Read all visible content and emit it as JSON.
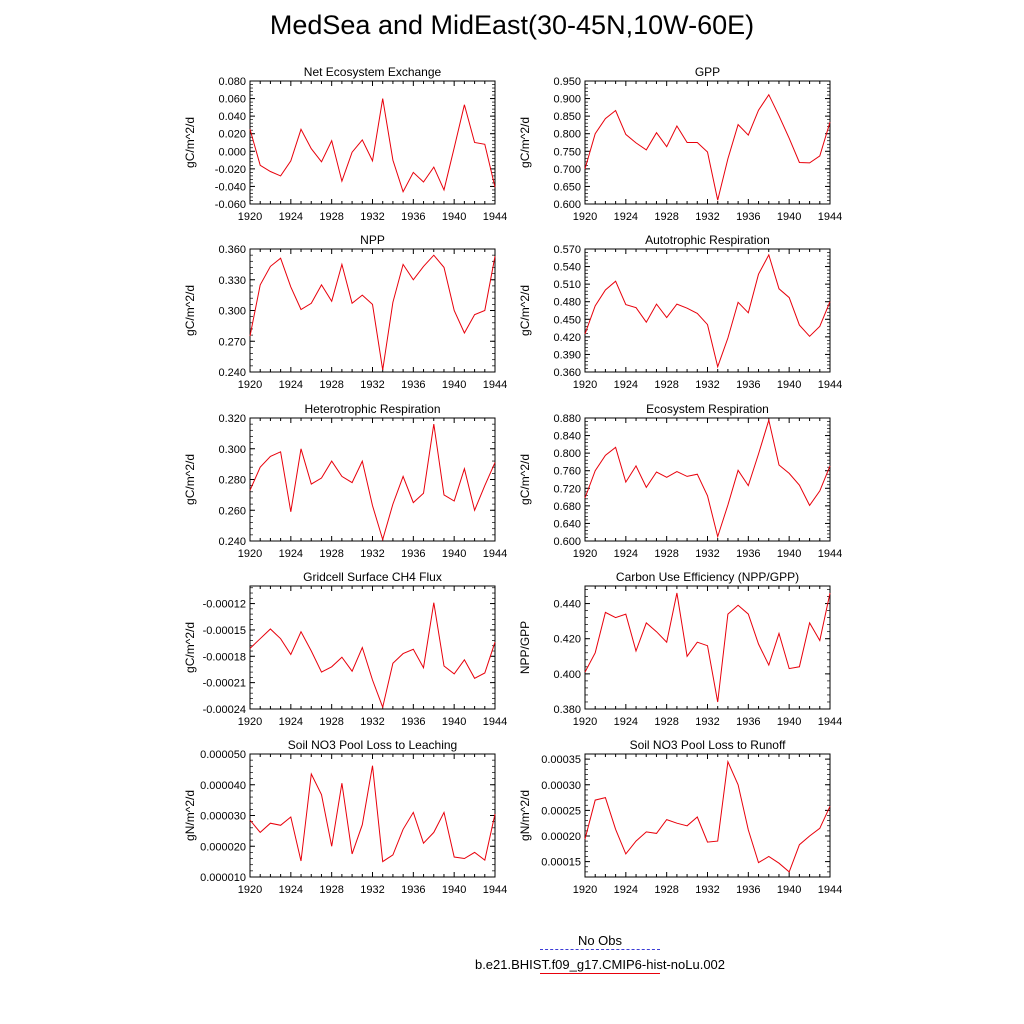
{
  "figure": {
    "title": "MedSea and MidEast(30-45N,10W-60E)",
    "legend": [
      {
        "label": "No Obs",
        "style": "dashed",
        "color": "#3b3bd6"
      },
      {
        "label": "b.e21.BHIST.f09_g17.CMIP6-hist-noLu.002",
        "style": "solid",
        "color": "#e8000b"
      }
    ],
    "line_color": "#e8000b"
  },
  "chart_data": [
    {
      "type": "line",
      "title": "Net Ecosystem Exchange",
      "ylabel": "gC/m^2/d",
      "xlabel": "",
      "x": [
        1920,
        1921,
        1922,
        1923,
        1924,
        1925,
        1926,
        1927,
        1928,
        1929,
        1930,
        1931,
        1932,
        1933,
        1934,
        1935,
        1936,
        1937,
        1938,
        1939,
        1940,
        1941,
        1942,
        1943,
        1944
      ],
      "xticks": [
        "1920",
        "1924",
        "1928",
        "1932",
        "1936",
        "1940",
        "1944"
      ],
      "ylim": [
        -0.06,
        0.08
      ],
      "yticks": [
        "-0.060",
        "-0.040",
        "-0.020",
        "0.000",
        "0.020",
        "0.040",
        "0.060",
        "0.080"
      ],
      "values": [
        0.025,
        -0.016,
        -0.023,
        -0.028,
        -0.011,
        0.025,
        0.003,
        -0.012,
        0.012,
        -0.034,
        -0.001,
        0.013,
        -0.011,
        0.06,
        -0.01,
        -0.046,
        -0.024,
        -0.035,
        -0.018,
        -0.044,
        0.004,
        0.053,
        0.01,
        0.008,
        -0.041
      ]
    },
    {
      "type": "line",
      "title": "GPP",
      "ylabel": "gC/m^2/d",
      "xlabel": "",
      "x": [
        1920,
        1921,
        1922,
        1923,
        1924,
        1925,
        1926,
        1927,
        1928,
        1929,
        1930,
        1931,
        1932,
        1933,
        1934,
        1935,
        1936,
        1937,
        1938,
        1939,
        1940,
        1941,
        1942,
        1943,
        1944
      ],
      "xticks": [
        "1920",
        "1924",
        "1928",
        "1932",
        "1936",
        "1940",
        "1944"
      ],
      "ylim": [
        0.6,
        0.95
      ],
      "yticks": [
        "0.600",
        "0.650",
        "0.700",
        "0.750",
        "0.800",
        "0.850",
        "0.900",
        "0.950"
      ],
      "values": [
        0.7,
        0.8,
        0.843,
        0.866,
        0.798,
        0.774,
        0.754,
        0.803,
        0.763,
        0.822,
        0.775,
        0.775,
        0.748,
        0.611,
        0.729,
        0.826,
        0.796,
        0.867,
        0.911,
        0.851,
        0.787,
        0.718,
        0.717,
        0.737,
        0.833
      ]
    },
    {
      "type": "line",
      "title": "NPP",
      "ylabel": "gC/m^2/d",
      "xlabel": "",
      "x": [
        1920,
        1921,
        1922,
        1923,
        1924,
        1925,
        1926,
        1927,
        1928,
        1929,
        1930,
        1931,
        1932,
        1933,
        1934,
        1935,
        1936,
        1937,
        1938,
        1939,
        1940,
        1941,
        1942,
        1943,
        1944
      ],
      "xticks": [
        "1920",
        "1924",
        "1928",
        "1932",
        "1936",
        "1940",
        "1944"
      ],
      "ylim": [
        0.24,
        0.36
      ],
      "yticks": [
        "0.240",
        "0.270",
        "0.300",
        "0.330",
        "0.360"
      ],
      "values": [
        0.275,
        0.325,
        0.343,
        0.351,
        0.323,
        0.301,
        0.307,
        0.325,
        0.309,
        0.345,
        0.307,
        0.315,
        0.306,
        0.242,
        0.308,
        0.345,
        0.33,
        0.343,
        0.354,
        0.342,
        0.3,
        0.278,
        0.296,
        0.3,
        0.353
      ]
    },
    {
      "type": "line",
      "title": "Autotrophic Respiration",
      "ylabel": "gC/m^2/d",
      "xlabel": "",
      "x": [
        1920,
        1921,
        1922,
        1923,
        1924,
        1925,
        1926,
        1927,
        1928,
        1929,
        1930,
        1931,
        1932,
        1933,
        1934,
        1935,
        1936,
        1937,
        1938,
        1939,
        1940,
        1941,
        1942,
        1943,
        1944
      ],
      "xticks": [
        "1920",
        "1924",
        "1928",
        "1932",
        "1936",
        "1940",
        "1944"
      ],
      "ylim": [
        0.36,
        0.57
      ],
      "yticks": [
        "0.360",
        "0.390",
        "0.420",
        "0.450",
        "0.480",
        "0.510",
        "0.540",
        "0.570"
      ],
      "values": [
        0.425,
        0.473,
        0.5,
        0.515,
        0.475,
        0.47,
        0.445,
        0.476,
        0.453,
        0.476,
        0.469,
        0.46,
        0.441,
        0.369,
        0.418,
        0.479,
        0.461,
        0.527,
        0.56,
        0.502,
        0.487,
        0.44,
        0.421,
        0.438,
        0.48
      ]
    },
    {
      "type": "line",
      "title": "Heterotrophic Respiration",
      "ylabel": "gC/m^2/d",
      "xlabel": "",
      "x": [
        1920,
        1921,
        1922,
        1923,
        1924,
        1925,
        1926,
        1927,
        1928,
        1929,
        1930,
        1931,
        1932,
        1933,
        1934,
        1935,
        1936,
        1937,
        1938,
        1939,
        1940,
        1941,
        1942,
        1943,
        1944
      ],
      "xticks": [
        "1920",
        "1924",
        "1928",
        "1932",
        "1936",
        "1940",
        "1944"
      ],
      "ylim": [
        0.24,
        0.32
      ],
      "yticks": [
        "0.240",
        "0.260",
        "0.280",
        "0.300",
        "0.320"
      ],
      "values": [
        0.273,
        0.288,
        0.295,
        0.298,
        0.259,
        0.3,
        0.277,
        0.281,
        0.292,
        0.282,
        0.278,
        0.292,
        0.263,
        0.241,
        0.264,
        0.282,
        0.265,
        0.271,
        0.316,
        0.27,
        0.266,
        0.287,
        0.26,
        0.276,
        0.291
      ]
    },
    {
      "type": "line",
      "title": "Ecosystem Respiration",
      "ylabel": "gC/m^2/d",
      "xlabel": "",
      "x": [
        1920,
        1921,
        1922,
        1923,
        1924,
        1925,
        1926,
        1927,
        1928,
        1929,
        1930,
        1931,
        1932,
        1933,
        1934,
        1935,
        1936,
        1937,
        1938,
        1939,
        1940,
        1941,
        1942,
        1943,
        1944
      ],
      "xticks": [
        "1920",
        "1924",
        "1928",
        "1932",
        "1936",
        "1940",
        "1944"
      ],
      "ylim": [
        0.6,
        0.88
      ],
      "yticks": [
        "0.600",
        "0.640",
        "0.680",
        "0.720",
        "0.760",
        "0.800",
        "0.840",
        "0.880"
      ],
      "values": [
        0.698,
        0.76,
        0.795,
        0.813,
        0.734,
        0.771,
        0.722,
        0.757,
        0.745,
        0.758,
        0.747,
        0.752,
        0.703,
        0.61,
        0.682,
        0.761,
        0.726,
        0.798,
        0.875,
        0.773,
        0.754,
        0.727,
        0.681,
        0.714,
        0.771
      ]
    },
    {
      "type": "line",
      "title": "Gridcell Surface CH4 Flux",
      "ylabel": "gC/m^2/d",
      "xlabel": "",
      "x": [
        1920,
        1921,
        1922,
        1923,
        1924,
        1925,
        1926,
        1927,
        1928,
        1929,
        1930,
        1931,
        1932,
        1933,
        1934,
        1935,
        1936,
        1937,
        1938,
        1939,
        1940,
        1941,
        1942,
        1943,
        1944
      ],
      "xticks": [
        "1920",
        "1924",
        "1928",
        "1932",
        "1936",
        "1940",
        "1944"
      ],
      "ylim": [
        -0.00024,
        -0.0001
      ],
      "yticks": [
        "-0.00024",
        "-0.00021",
        "-0.00018",
        "-0.00015",
        "-0.00012"
      ],
      "values": [
        -0.000171,
        -0.00016,
        -0.000149,
        -0.00016,
        -0.000178,
        -0.000152,
        -0.000174,
        -0.000198,
        -0.000192,
        -0.000181,
        -0.000197,
        -0.00017,
        -0.000207,
        -0.000238,
        -0.000188,
        -0.000177,
        -0.000172,
        -0.000193,
        -0.000119,
        -0.000191,
        -0.0002,
        -0.000184,
        -0.000205,
        -0.000199,
        -0.000164
      ]
    },
    {
      "type": "line",
      "title": "Carbon Use Efficiency (NPP/GPP)",
      "ylabel": "NPP/GPP",
      "xlabel": "",
      "x": [
        1920,
        1921,
        1922,
        1923,
        1924,
        1925,
        1926,
        1927,
        1928,
        1929,
        1930,
        1931,
        1932,
        1933,
        1934,
        1935,
        1936,
        1937,
        1938,
        1939,
        1940,
        1941,
        1942,
        1943,
        1944
      ],
      "xticks": [
        "1920",
        "1924",
        "1928",
        "1932",
        "1936",
        "1940",
        "1944"
      ],
      "ylim": [
        0.38,
        0.45
      ],
      "yticks": [
        "0.380",
        "0.400",
        "0.420",
        "0.440"
      ],
      "values": [
        0.401,
        0.412,
        0.435,
        0.432,
        0.434,
        0.413,
        0.429,
        0.424,
        0.418,
        0.446,
        0.41,
        0.418,
        0.416,
        0.384,
        0.434,
        0.439,
        0.434,
        0.417,
        0.405,
        0.423,
        0.403,
        0.404,
        0.429,
        0.419,
        0.446
      ]
    },
    {
      "type": "line",
      "title": "Soil NO3 Pool Loss to Leaching",
      "ylabel": "gN/m^2/d",
      "xlabel": "",
      "x": [
        1920,
        1921,
        1922,
        1923,
        1924,
        1925,
        1926,
        1927,
        1928,
        1929,
        1930,
        1931,
        1932,
        1933,
        1934,
        1935,
        1936,
        1937,
        1938,
        1939,
        1940,
        1941,
        1942,
        1943,
        1944
      ],
      "xticks": [
        "1920",
        "1924",
        "1928",
        "1932",
        "1936",
        "1940",
        "1944"
      ],
      "ylim": [
        1e-05,
        5e-05
      ],
      "yticks": [
        "0.000010",
        "0.000020",
        "0.000030",
        "0.000040",
        "0.000050"
      ],
      "values": [
        2.85e-05,
        2.45e-05,
        2.75e-05,
        2.68e-05,
        2.95e-05,
        1.52e-05,
        4.35e-05,
        3.68e-05,
        2e-05,
        4.05e-05,
        1.75e-05,
        2.7e-05,
        4.62e-05,
        1.5e-05,
        1.72e-05,
        2.55e-05,
        3.1e-05,
        2.1e-05,
        2.45e-05,
        3.1e-05,
        1.65e-05,
        1.6e-05,
        1.8e-05,
        1.55e-05,
        3.05e-05
      ]
    },
    {
      "type": "line",
      "title": "Soil NO3 Pool Loss to Runoff",
      "ylabel": "gN/m^2/d",
      "xlabel": "",
      "x": [
        1920,
        1921,
        1922,
        1923,
        1924,
        1925,
        1926,
        1927,
        1928,
        1929,
        1930,
        1931,
        1932,
        1933,
        1934,
        1935,
        1936,
        1937,
        1938,
        1939,
        1940,
        1941,
        1942,
        1943,
        1944
      ],
      "xticks": [
        "1920",
        "1924",
        "1928",
        "1932",
        "1936",
        "1940",
        "1944"
      ],
      "ylim": [
        0.00012,
        0.00036
      ],
      "yticks": [
        "0.00015",
        "0.00020",
        "0.00025",
        "0.00030",
        "0.00035"
      ],
      "values": [
        0.000194,
        0.00027,
        0.000275,
        0.000213,
        0.000165,
        0.00019,
        0.000208,
        0.000205,
        0.000232,
        0.000225,
        0.00022,
        0.000237,
        0.000188,
        0.00019,
        0.000345,
        0.0003,
        0.000212,
        0.000148,
        0.00016,
        0.000147,
        0.00013,
        0.000183,
        0.0002,
        0.000215,
        0.000258
      ]
    }
  ]
}
